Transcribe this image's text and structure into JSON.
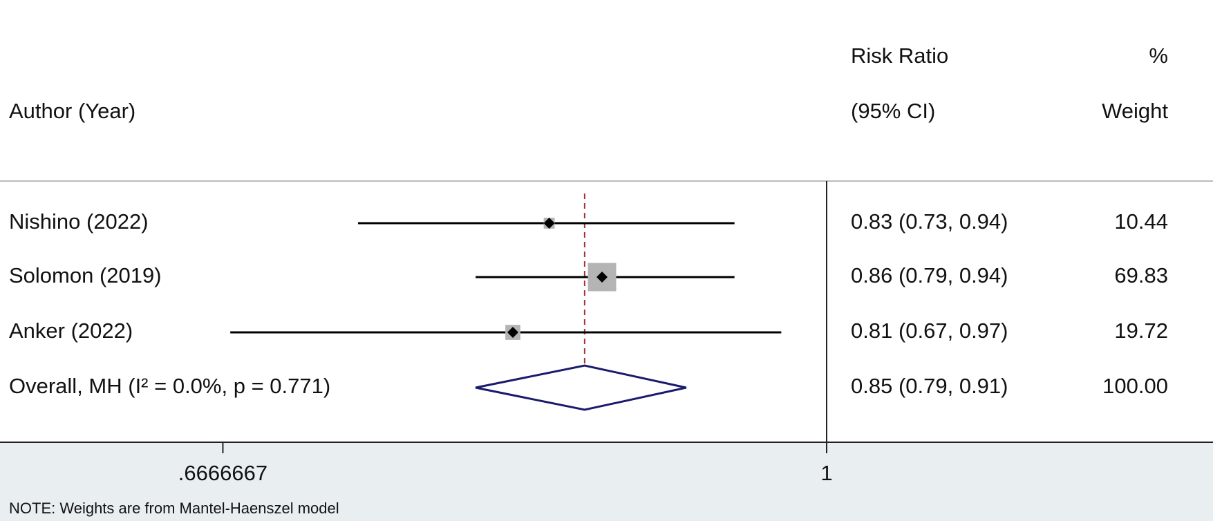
{
  "chart_data": {
    "type": "forest",
    "study_header": "Author (Year)",
    "estimate_header": [
      "Risk Ratio",
      "(95% CI)"
    ],
    "weight_header": [
      "%",
      "Weight"
    ],
    "categories": [
      "Nishino (2022)",
      "Solomon (2019)",
      "Anker (2022)"
    ],
    "estimate": [
      0.83,
      0.86,
      0.81
    ],
    "lower": [
      0.73,
      0.79,
      0.67
    ],
    "upper": [
      0.94,
      0.94,
      0.97
    ],
    "weight": [
      10.44,
      69.83,
      19.72
    ],
    "value_labels": [
      "0.83 (0.73, 0.94)",
      "0.86 (0.79, 0.94)",
      "0.81 (0.67, 0.97)"
    ],
    "overall": {
      "label": "Overall, MH (I² = 0.0%, p = 0.771)",
      "estimate": 0.85,
      "lower": 0.79,
      "upper": 0.91,
      "weight": 100,
      "weight_label": "100.00",
      "value_label": "0.85 (0.79, 0.91)"
    },
    "xscale": "log",
    "xlim": [
      0.574,
      1
    ],
    "xticks": [
      {
        "value": 0.6666667,
        "label": ".6666667"
      },
      1
    ],
    "box_color": "#b4b4b4",
    "line_color": "#000000",
    "diamond_color": "#1a1a6e",
    "reference_color": "#a0303a",
    "note": "NOTE: Weights are from Mantel-Haenszel model"
  }
}
